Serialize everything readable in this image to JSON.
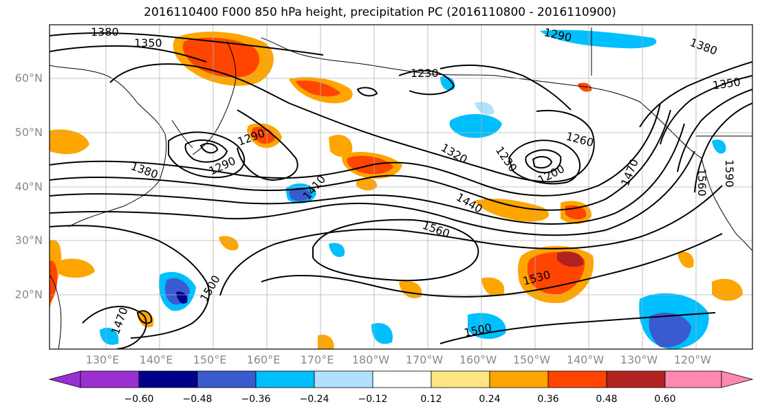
{
  "title": "2016110400 F000 850 hPa height, precipitation PC (2016110800 - 2016110900)",
  "lat_labels": [
    "60°N",
    "50°N",
    "40°N",
    "30°N",
    "20°N"
  ],
  "lon_labels": [
    "130°E",
    "140°E",
    "150°E",
    "160°E",
    "170°E",
    "180°W",
    "170°W",
    "160°W",
    "150°W",
    "140°W",
    "130°W",
    "120°W"
  ],
  "contour_labels": [
    "1380",
    "1350",
    "1290",
    "1230",
    "1290",
    "1350",
    "1380",
    "1320",
    "1230",
    "1260",
    "1200",
    "1410",
    "1440",
    "1470",
    "1560",
    "1560",
    "1590",
    "1500",
    "1530",
    "1500",
    "1470",
    "1380",
    "1290"
  ],
  "colorbar": {
    "ticks": [
      "−0.60",
      "−0.48",
      "−0.36",
      "−0.24",
      "−0.12",
      "0.12",
      "0.24",
      "0.36",
      "0.48",
      "0.60"
    ],
    "colors": [
      "#9b30d0",
      "#00008b",
      "#3a5bd0",
      "#00bfff",
      "#b0e2ff",
      "#ffffff",
      "#ffe680",
      "#ffa500",
      "#ff4500",
      "#b22222",
      "#ff88b0"
    ]
  },
  "colors": {
    "orange": "#ffa500",
    "red_orange": "#ff4500",
    "dark_red": "#b22222",
    "light_yellow": "#ffe680",
    "light_blue": "#b0e2ff",
    "sky_blue": "#00bfff",
    "royal_blue": "#3a5bd0",
    "navy": "#00008b"
  }
}
